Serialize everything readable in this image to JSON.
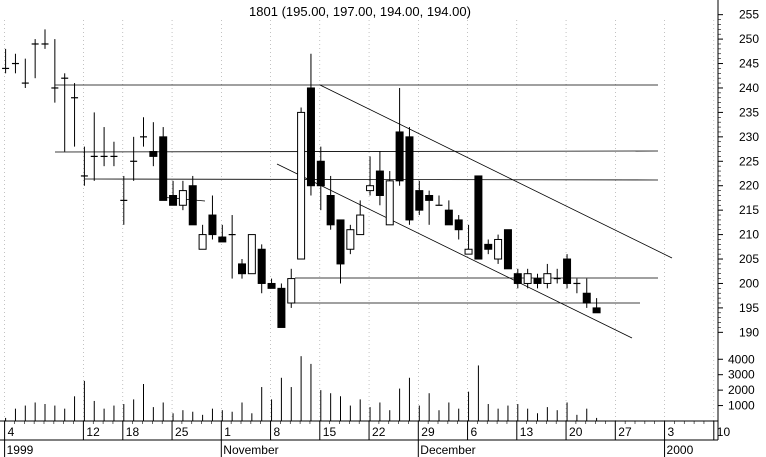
{
  "chart_data": {
    "type": "candlestick",
    "title": "1801 (195.00, 197.00, 194.00, 194.00)",
    "price_axis": {
      "ylim": [
        187,
        258
      ],
      "ticks": [
        190,
        195,
        200,
        205,
        210,
        215,
        220,
        225,
        230,
        235,
        240,
        245,
        250,
        255
      ]
    },
    "volume_axis": {
      "ylim": [
        0,
        4600
      ],
      "ticks": [
        1000,
        2000,
        3000,
        4000
      ]
    },
    "x_tick_labels": [
      "4",
      "12",
      "18",
      "25",
      "1",
      "8",
      "15",
      "22",
      "29",
      "6",
      "13",
      "20",
      "27",
      "3",
      "10"
    ],
    "x_period_labels": [
      "1999",
      "November",
      "December",
      "2000"
    ],
    "candles": [
      {
        "i": 0,
        "o": 244,
        "h": 248,
        "l": 243,
        "c": 244
      },
      {
        "i": 1,
        "o": 245,
        "h": 247,
        "l": 243,
        "c": 245
      },
      {
        "i": 2,
        "o": 241,
        "h": 246,
        "l": 240,
        "c": 241
      },
      {
        "i": 3,
        "o": 249,
        "h": 250,
        "l": 242,
        "c": 249
      },
      {
        "i": 4,
        "o": 249,
        "h": 252,
        "l": 248,
        "c": 249
      },
      {
        "i": 5,
        "o": 240,
        "h": 250,
        "l": 237,
        "c": 240
      },
      {
        "i": 6,
        "o": 242,
        "h": 243,
        "l": 227,
        "c": 242
      },
      {
        "i": 7,
        "o": 238,
        "h": 241,
        "l": 228,
        "c": 238
      },
      {
        "i": 8,
        "o": 222,
        "h": 228,
        "l": 220,
        "c": 222
      },
      {
        "i": 9,
        "o": 226,
        "h": 235,
        "l": 221,
        "c": 226
      },
      {
        "i": 10,
        "o": 226,
        "h": 232,
        "l": 224,
        "c": 226
      },
      {
        "i": 11,
        "o": 226,
        "h": 229,
        "l": 224,
        "c": 226
      },
      {
        "i": 12,
        "o": 217,
        "h": 222,
        "l": 212,
        "c": 217
      },
      {
        "i": 13,
        "o": 225,
        "h": 230,
        "l": 221,
        "c": 225
      },
      {
        "i": 14,
        "o": 230,
        "h": 234,
        "l": 228,
        "c": 230
      },
      {
        "i": 15,
        "o": 227,
        "h": 233,
        "l": 224,
        "c": 226
      },
      {
        "i": 16,
        "o": 230,
        "h": 232,
        "l": 217,
        "c": 217
      },
      {
        "i": 17,
        "o": 218,
        "h": 221,
        "l": 216,
        "c": 216
      },
      {
        "i": 18,
        "o": 216,
        "h": 221,
        "l": 215,
        "c": 219
      },
      {
        "i": 19,
        "o": 220,
        "h": 222,
        "l": 212,
        "c": 212
      },
      {
        "i": 20,
        "o": 207,
        "h": 212,
        "l": 207,
        "c": 210
      },
      {
        "i": 21,
        "o": 214,
        "h": 218,
        "l": 209,
        "c": 210
      },
      {
        "i": 22,
        "o": 209.5,
        "h": 212,
        "l": 208.5,
        "c": 208.5
      },
      {
        "i": 23,
        "o": 210,
        "h": 214,
        "l": 201,
        "c": 210
      },
      {
        "i": 24,
        "o": 204,
        "h": 205,
        "l": 201,
        "c": 202
      },
      {
        "i": 25,
        "o": 202,
        "h": 210,
        "l": 202,
        "c": 210
      },
      {
        "i": 26,
        "o": 207,
        "h": 208,
        "l": 198,
        "c": 200
      },
      {
        "i": 27,
        "o": 200,
        "h": 201,
        "l": 199,
        "c": 199
      },
      {
        "i": 28,
        "o": 199,
        "h": 200,
        "l": 191,
        "c": 191
      },
      {
        "i": 29,
        "o": 196,
        "h": 203,
        "l": 195,
        "c": 201
      },
      {
        "i": 30,
        "o": 205,
        "h": 236,
        "l": 205,
        "c": 235
      },
      {
        "i": 31,
        "o": 240,
        "h": 247,
        "l": 218,
        "c": 220
      },
      {
        "i": 32,
        "o": 225,
        "h": 228,
        "l": 215,
        "c": 220
      },
      {
        "i": 33,
        "o": 218,
        "h": 222,
        "l": 211,
        "c": 212
      },
      {
        "i": 34,
        "o": 213,
        "h": 213,
        "l": 200,
        "c": 204
      },
      {
        "i": 35,
        "o": 207,
        "h": 212,
        "l": 206,
        "c": 211
      },
      {
        "i": 36,
        "o": 210,
        "h": 217,
        "l": 210,
        "c": 214
      },
      {
        "i": 37,
        "o": 219,
        "h": 226,
        "l": 218,
        "c": 220
      },
      {
        "i": 38,
        "o": 223,
        "h": 227,
        "l": 216,
        "c": 218
      },
      {
        "i": 39,
        "o": 212,
        "h": 223,
        "l": 212,
        "c": 221
      },
      {
        "i": 40,
        "o": 231,
        "h": 240,
        "l": 220,
        "c": 221
      },
      {
        "i": 41,
        "o": 230,
        "h": 232,
        "l": 212,
        "c": 213
      },
      {
        "i": 42,
        "o": 219,
        "h": 221,
        "l": 214,
        "c": 215
      },
      {
        "i": 43,
        "o": 218,
        "h": 219,
        "l": 212,
        "c": 217
      },
      {
        "i": 44,
        "o": 216,
        "h": 218,
        "l": 216,
        "c": 216
      },
      {
        "i": 45,
        "o": 215,
        "h": 217,
        "l": 212,
        "c": 212
      },
      {
        "i": 46,
        "o": 213,
        "h": 214,
        "l": 209,
        "c": 211
      },
      {
        "i": 47,
        "o": 206,
        "h": 212,
        "l": 206,
        "c": 207
      },
      {
        "i": 48,
        "o": 222,
        "h": 222,
        "l": 205,
        "c": 205
      },
      {
        "i": 49,
        "o": 208,
        "h": 209,
        "l": 206,
        "c": 207
      },
      {
        "i": 50,
        "o": 205,
        "h": 210,
        "l": 204,
        "c": 209
      },
      {
        "i": 51,
        "o": 211,
        "h": 211,
        "l": 203,
        "c": 203
      },
      {
        "i": 52,
        "o": 202,
        "h": 203,
        "l": 199,
        "c": 200
      },
      {
        "i": 53,
        "o": 200,
        "h": 203,
        "l": 199,
        "c": 202
      },
      {
        "i": 54,
        "o": 201,
        "h": 202,
        "l": 199,
        "c": 200
      },
      {
        "i": 55,
        "o": 200,
        "h": 204,
        "l": 199,
        "c": 202
      },
      {
        "i": 56,
        "o": 201,
        "h": 203,
        "l": 200,
        "c": 201
      },
      {
        "i": 57,
        "o": 205,
        "h": 206,
        "l": 199,
        "c": 200
      },
      {
        "i": 58,
        "o": 200,
        "h": 201,
        "l": 198,
        "c": 200
      },
      {
        "i": 59,
        "o": 198,
        "h": 201,
        "l": 195,
        "c": 196
      },
      {
        "i": 60,
        "o": 195,
        "h": 197,
        "l": 194,
        "c": 194
      }
    ],
    "volume": [
      200,
      800,
      1000,
      1200,
      1100,
      1000,
      800,
      1600,
      2600,
      1300,
      800,
      1000,
      1100,
      1400,
      2400,
      900,
      1200,
      500,
      700,
      600,
      400,
      800,
      700,
      600,
      1200,
      500,
      2200,
      1400,
      2800,
      2200,
      4200,
      3700,
      2000,
      1800,
      1600,
      1000,
      1400,
      900,
      1200,
      700,
      2100,
      2800,
      1000,
      1800,
      700,
      1200,
      800,
      1900,
      3600,
      1100,
      800,
      1000,
      1100,
      800,
      500,
      900,
      700,
      1200,
      400,
      800,
      200
    ],
    "grid": true
  }
}
